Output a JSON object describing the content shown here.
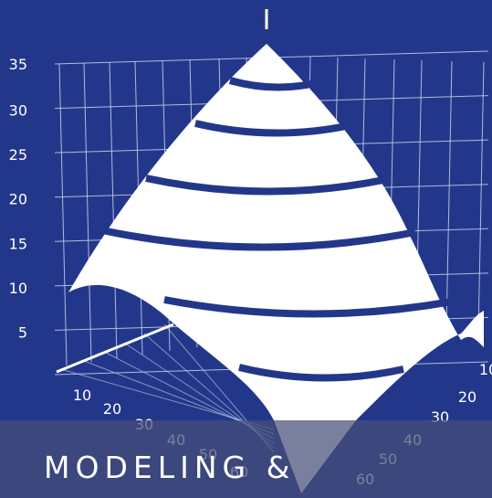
{
  "banner": {
    "title": "MODELING &"
  },
  "colors": {
    "background": "#23378a",
    "surface": "#ffffff",
    "grid": "#c8d0ee",
    "banner": "#464e78"
  },
  "chart_data": {
    "type": "surface3d",
    "z_ticks": [
      "5",
      "10",
      "15",
      "20",
      "25",
      "30",
      "35"
    ],
    "x_ticks": [
      "10",
      "20",
      "30",
      "40",
      "50",
      "60"
    ],
    "y_ticks": [
      "10",
      "20",
      "30",
      "40",
      "50",
      "60"
    ],
    "z_range": [
      0,
      35
    ],
    "grid": true,
    "peak_value": 35,
    "contour_levels": [
      5,
      10,
      15,
      20,
      25,
      30
    ]
  }
}
